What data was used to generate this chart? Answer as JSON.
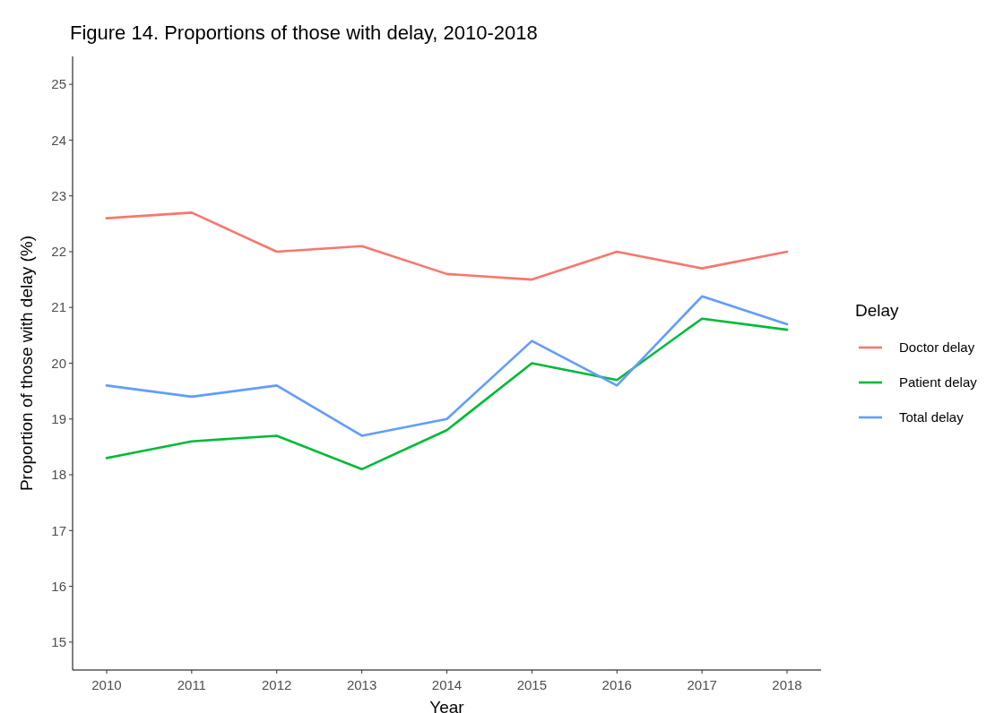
{
  "chart_data": {
    "type": "line",
    "title": "Figure 14. Proportions of those with delay, 2010-2018",
    "xlabel": "Year",
    "ylabel": "Proportion of those with delay (%)",
    "legend_title": "Delay",
    "x": [
      2010,
      2011,
      2012,
      2013,
      2014,
      2015,
      2016,
      2017,
      2018
    ],
    "series": [
      {
        "name": "Doctor delay",
        "color": "#f8766d",
        "values": [
          22.6,
          22.7,
          22.0,
          22.1,
          21.6,
          21.5,
          22.0,
          21.7,
          22.0
        ]
      },
      {
        "name": "Patient delay",
        "color": "#00ba38",
        "values": [
          18.3,
          18.6,
          18.7,
          18.1,
          18.8,
          20.0,
          19.7,
          20.8,
          20.6
        ]
      },
      {
        "name": "Total delay",
        "color": "#619cff",
        "values": [
          19.6,
          19.4,
          19.6,
          18.7,
          19.0,
          20.4,
          19.6,
          21.2,
          20.7
        ]
      }
    ],
    "xlim": [
      2009.6,
      2018.4
    ],
    "xticks": [
      2010,
      2011,
      2012,
      2013,
      2014,
      2015,
      2016,
      2017,
      2018
    ],
    "ylim": [
      14.5,
      25.5
    ],
    "yticks": [
      15,
      16,
      17,
      18,
      19,
      20,
      21,
      22,
      23,
      24,
      25
    ],
    "grid": false,
    "legend": "right",
    "marker": "none",
    "line_style": "solid"
  }
}
